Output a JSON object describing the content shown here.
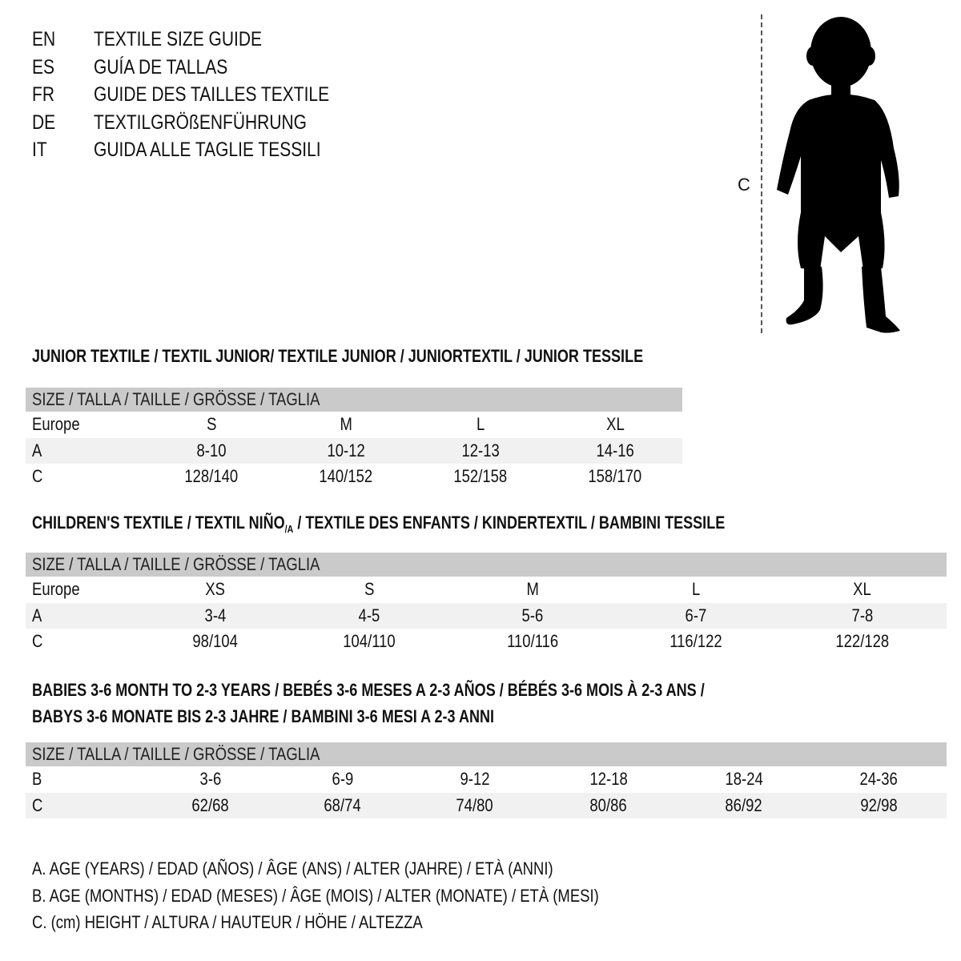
{
  "languages": [
    {
      "code": "EN",
      "title": "TEXTILE SIZE GUIDE"
    },
    {
      "code": "ES",
      "title": "GUÍA DE TALLAS"
    },
    {
      "code": "FR",
      "title": "GUIDE DES TAILLES TEXTILE"
    },
    {
      "code": "DE",
      "title": "TEXTILGRÖßENFÜHRUNG"
    },
    {
      "code": "IT",
      "title": "GUIDA ALLE TAGLIE TESSILI"
    }
  ],
  "figure": {
    "measure_label": "C",
    "icon": "child-silhouette-icon"
  },
  "junior": {
    "heading": "JUNIOR TEXTILE / TEXTIL JUNIOR/ TEXTILE JUNIOR / JUNIORTEXTIL / JUNIOR TESSILE",
    "header": "SIZE / TALLA / TAILLE / GRÖSSE / TAGLIA",
    "rows": [
      {
        "label": "Europe",
        "values": [
          "S",
          "M",
          "L",
          "XL"
        ]
      },
      {
        "label": "A",
        "values": [
          "8-10",
          "10-12",
          "12-13",
          "14-16"
        ]
      },
      {
        "label": "C",
        "values": [
          "128/140",
          "140/152",
          "152/158",
          "158/170"
        ]
      }
    ]
  },
  "children": {
    "heading_pre": "CHILDREN'S TEXTILE / TEXTIL NIÑO",
    "heading_sub": "/A",
    "heading_post": " / TEXTILE DES ENFANTS / KINDERTEXTIL / BAMBINI TESSILE",
    "header": "SIZE / TALLA / TAILLE / GRÖSSE / TAGLIA",
    "rows": [
      {
        "label": "Europe",
        "values": [
          "XS",
          "S",
          "M",
          "L",
          "XL"
        ]
      },
      {
        "label": "A",
        "values": [
          "3-4",
          "4-5",
          "5-6",
          "6-7",
          "7-8"
        ]
      },
      {
        "label": "C",
        "values": [
          "98/104",
          "104/110",
          "110/116",
          "116/122",
          "122/128"
        ]
      }
    ]
  },
  "babies": {
    "heading_line1": "BABIES 3-6 MONTH TO 2-3 YEARS / BEBÉS 3-6 MESES A 2-3 AÑOS / BÉBÉS 3-6 MOIS À 2-3 ANS /",
    "heading_line2": "BABYS 3-6 MONATE BIS 2-3 JAHRE / BAMBINI 3-6 MESI A 2-3 ANNI",
    "header": "SIZE / TALLA / TAILLE / GRÖSSE / TAGLIA",
    "rows": [
      {
        "label": "B",
        "values": [
          "3-6",
          "6-9",
          "9-12",
          "12-18",
          "18-24",
          "24-36"
        ]
      },
      {
        "label": "C",
        "values": [
          "62/68",
          "68/74",
          "74/80",
          "80/86",
          "86/92",
          "92/98"
        ]
      }
    ]
  },
  "legend": [
    "A. AGE (YEARS) / EDAD (AÑOS) / ÂGE (ANS) / ALTER (JAHRE) / ETÀ (ANNI)",
    "B. AGE (MONTHS) / EDAD (MESES) / ÂGE (MOIS) / ALTER (MONATE) / ETÀ (MESI)",
    "C. (cm) HEIGHT / ALTURA / HAUTEUR / HÖHE / ALTEZZA"
  ]
}
